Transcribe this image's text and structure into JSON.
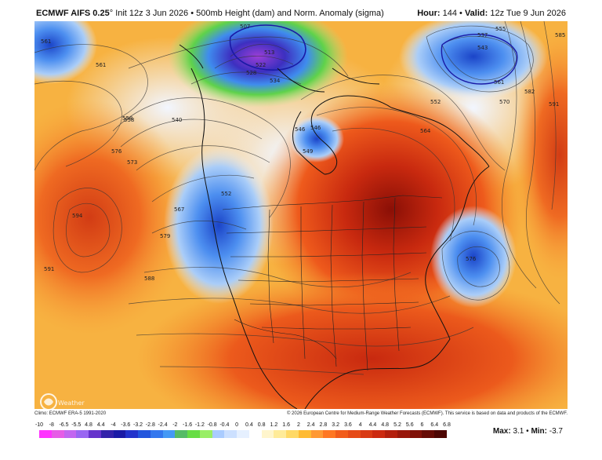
{
  "header": {
    "model": "ECMWF AIFS 0.25",
    "degree": "°",
    "init": "Init 12z 3 Jun 2026",
    "bullet": "•",
    "field": "500mb Height (dam) and Norm. Anomaly (sigma)",
    "hour_label": "Hour:",
    "hour_value": "144",
    "valid_label": "Valid:",
    "valid_value": "12z Tue 9 Jun 2026"
  },
  "footer": {
    "climo": "Climo: ECMWF ERA-5 1991-2020",
    "copyright": "© 2026 European Centre for Medium-Range Weather Forecasts (ECMWF). This service is based on data and products of the ECMWF.",
    "max_label": "Max:",
    "max_value": "3.1",
    "min_label": "Min:",
    "min_value": "-3.7"
  },
  "scale": {
    "labels": [
      "-10",
      "-8",
      "-6.5",
      "-5.5",
      "4.8",
      "4.4",
      "-4",
      "-3.6",
      "-3.2",
      "-2.8",
      "-2.4",
      "-2",
      "-1.6",
      "-1.2",
      "-0.8",
      "-0.4",
      "0",
      "0.4",
      "0.8",
      "1.2",
      "1.6",
      "2",
      "2.4",
      "2.8",
      "3.2",
      "3.6",
      "4",
      "4.4",
      "4.8",
      "5.2",
      "5.6",
      "6",
      "6.4",
      "6.8"
    ],
    "colors": [
      "#ff33ff",
      "#e65ce6",
      "#c266f0",
      "#9966f2",
      "#6633cc",
      "#3322aa",
      "#1a1aa6",
      "#2233cc",
      "#2255dd",
      "#3377ee",
      "#4499f5",
      "#55bb66",
      "#66dd44",
      "#99ee66",
      "#aaccff",
      "#cce0ff",
      "#e6f0ff",
      "#ffffff",
      "#fff5cc",
      "#ffeb99",
      "#ffd966",
      "#ffbb33",
      "#ff9933",
      "#ff7722",
      "#f25c1a",
      "#e64a17",
      "#d93a14",
      "#cc2a10",
      "#b31f0d",
      "#99170a",
      "#801108",
      "#660b05",
      "#4d0603"
    ]
  },
  "contours": [
    "561",
    "507",
    "540",
    "546",
    "552",
    "558",
    "561",
    "576",
    "573",
    "579",
    "588",
    "591",
    "594",
    "567",
    "522",
    "528",
    "513",
    "534",
    "552",
    "546",
    "549",
    "564",
    "570",
    "582",
    "591",
    "585",
    "537",
    "543",
    "555",
    "561",
    "576",
    "558"
  ],
  "logo_text": "Weather"
}
